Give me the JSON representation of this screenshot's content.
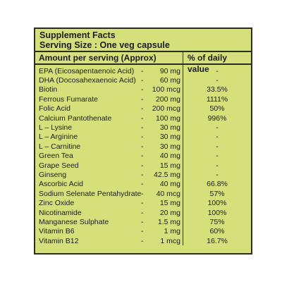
{
  "header": {
    "title": "Supplement Facts",
    "serving": "Serving Size : One veg capsule"
  },
  "columns": {
    "amount": "Amount per serving (Approx)",
    "daily": "% of daily value"
  },
  "rows": [
    {
      "name": "EPA (Eicosapentaenoic Acid)",
      "dash": "-",
      "amount": "90 mg",
      "dv": "-"
    },
    {
      "name": "DHA (Docosahexaenoic Acid)",
      "dash": "-",
      "amount": "60 mg",
      "dv": "-"
    },
    {
      "name": "Biotin",
      "dash": "-",
      "amount": "100 mcg",
      "dv": "33.5%"
    },
    {
      "name": "Ferrous Fumarate",
      "dash": "-",
      "amount": "200 mg",
      "dv": "1111%"
    },
    {
      "name": "Folic Acid",
      "dash": "-",
      "amount": "200 mcg",
      "dv": "50%"
    },
    {
      "name": "Calcium Pantothenate",
      "dash": "-",
      "amount": "100 mg",
      "dv": "996%"
    },
    {
      "name": "L – Lysine",
      "dash": "-",
      "amount": "30 mg",
      "dv": "-"
    },
    {
      "name": "L – Arginine",
      "dash": "-",
      "amount": "30 mg",
      "dv": "-"
    },
    {
      "name": "L – Carnitine",
      "dash": "-",
      "amount": "30 mg",
      "dv": "-"
    },
    {
      "name": "Green Tea",
      "dash": "-",
      "amount": "40 mg",
      "dv": "-"
    },
    {
      "name": "Grape Seed",
      "dash": "-",
      "amount": "15 mg",
      "dv": "-"
    },
    {
      "name": "Ginseng",
      "dash": "-",
      "amount": "42.5 mg",
      "dv": "-"
    },
    {
      "name": "Ascorbic Acid",
      "dash": "-",
      "amount": "40 mg",
      "dv": "66.8%"
    },
    {
      "name": "Sodium Selenate Pentahydrate",
      "dash": "-",
      "amount": "40 mcg",
      "dv": "57%"
    },
    {
      "name": "Zinc Oxide",
      "dash": "-",
      "amount": "15 mg",
      "dv": "100%"
    },
    {
      "name": "Nicotinamide",
      "dash": "-",
      "amount": "20 mg",
      "dv": "100%"
    },
    {
      "name": "Manganese Sulphate",
      "dash": "-",
      "amount": "1.5 mg",
      "dv": "75%"
    },
    {
      "name": "Vitamin  B6",
      "dash": "-",
      "amount": "1 mg",
      "dv": "60%"
    },
    {
      "name": "Vitamin  B12",
      "dash": "-",
      "amount": "1 mcg",
      "dv": "16.7%"
    }
  ],
  "colors": {
    "panel_background": "#d6e07a",
    "border": "#2c2e1c",
    "text": "#1c1c1c"
  }
}
